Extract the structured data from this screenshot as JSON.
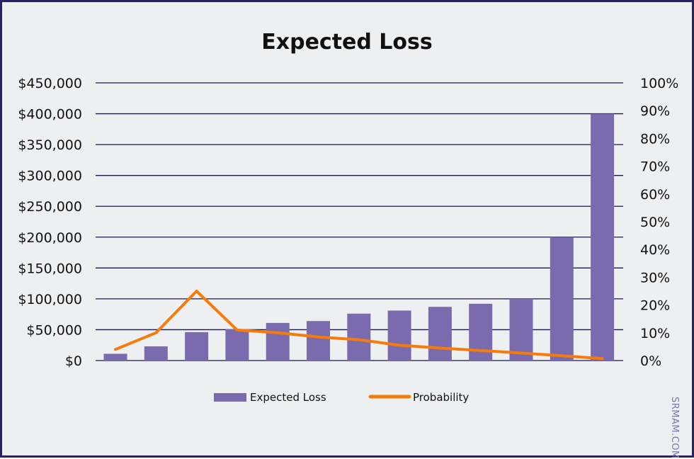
{
  "watermark": "SRMAM.COM",
  "colors": {
    "bar": "#7a6aae",
    "line": "#f57c0a",
    "grid": "#1a1650",
    "frame": "#2a2260",
    "background": "#eeeff1"
  },
  "chart_data": {
    "type": "bar",
    "title": "Expected Loss",
    "ylim": [
      0,
      450000
    ],
    "y2lim": [
      0,
      1
    ],
    "ytick_labels": [
      "$0",
      "$50,000",
      "$100,000",
      "$150,000",
      "$200,000",
      "$250,000",
      "$300,000",
      "$350,000",
      "$400,000",
      "$450,000"
    ],
    "y2tick_labels": [
      "0%",
      "10%",
      "20%",
      "30%",
      "40%",
      "50%",
      "60%",
      "70%",
      "80%",
      "90%",
      "100%"
    ],
    "grid": true,
    "legend_position": "bottom",
    "series": [
      {
        "name": "Expected Loss",
        "type": "bar",
        "axis": "left",
        "values": [
          11000,
          23000,
          46000,
          51000,
          61000,
          64000,
          76000,
          81000,
          87000,
          92000,
          100000,
          200000,
          400000
        ]
      },
      {
        "name": "Probability",
        "type": "line",
        "axis": "right",
        "values": [
          0.04,
          0.1,
          0.25,
          0.11,
          0.1,
          0.085,
          0.075,
          0.055,
          0.045,
          0.036,
          0.027,
          0.017,
          0.007
        ]
      }
    ]
  }
}
